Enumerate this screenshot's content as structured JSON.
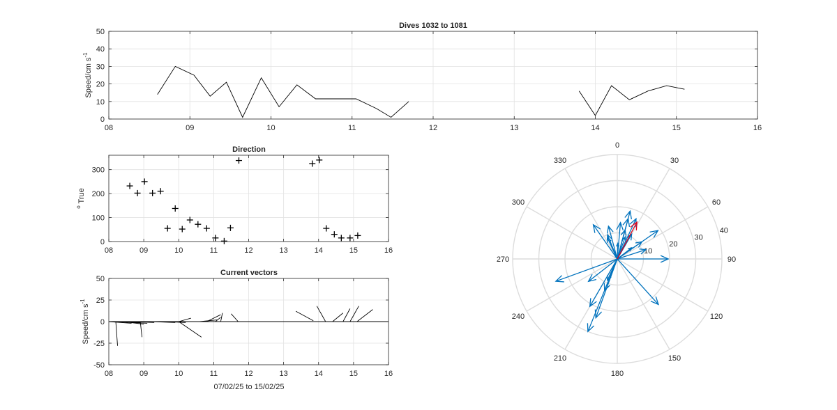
{
  "chart_data": [
    {
      "type": "line",
      "title": "Dives 1032 to 1081",
      "ylabel": "Speed/cm s",
      "ylabel_exp": "-1",
      "xlim": [
        8,
        16
      ],
      "ylim": [
        0,
        50
      ],
      "x_ticks": [
        "08",
        "09",
        "10",
        "11",
        "12",
        "13",
        "14",
        "15",
        "16"
      ],
      "y_ticks": [
        "0",
        "10",
        "20",
        "30",
        "40",
        "50"
      ],
      "grid": true,
      "segments": [
        {
          "x": [
            8.6,
            8.82,
            9.05,
            9.25,
            9.45,
            9.65,
            9.88,
            10.1,
            10.32,
            10.55,
            10.8,
            11.05,
            11.3,
            11.48,
            11.7
          ],
          "y": [
            14,
            30,
            25,
            13,
            21,
            1,
            23.5,
            7,
            19.5,
            11.5,
            11.5,
            11.5,
            6,
            1,
            10
          ]
        },
        {
          "x": [
            13.8,
            14.0,
            14.2,
            14.42,
            14.65,
            14.88,
            15.1
          ],
          "y": [
            16,
            2,
            19,
            11,
            16,
            19,
            17
          ]
        }
      ]
    },
    {
      "type": "scatter",
      "title": "Direction",
      "ylabel": "True",
      "ylabel_prefix": "o",
      "xlim": [
        8,
        16
      ],
      "ylim": [
        0,
        360
      ],
      "x_ticks": [
        "08",
        "09",
        "10",
        "11",
        "12",
        "13",
        "14",
        "15",
        "16"
      ],
      "y_ticks": [
        "0",
        "100",
        "200",
        "300"
      ],
      "grid": true,
      "x": [
        8.6,
        8.82,
        9.02,
        9.25,
        9.48,
        9.68,
        9.9,
        10.1,
        10.32,
        10.55,
        10.8,
        11.05,
        11.3,
        11.48,
        11.72,
        13.82,
        14.02,
        14.22,
        14.45,
        14.65,
        14.9,
        15.12
      ],
      "y": [
        232,
        202,
        250,
        202,
        210,
        55,
        138,
        52,
        90,
        72,
        55,
        15,
        2,
        57,
        338,
        325,
        340,
        55,
        30,
        15,
        15,
        25
      ]
    },
    {
      "type": "line",
      "subtype": "stick-vectors",
      "title": "Current vectors",
      "ylabel": "Speed/cm s",
      "ylabel_exp": "-1",
      "xlabel": "07/02/25 to 15/02/25",
      "xlim": [
        8,
        16
      ],
      "ylim": [
        -50,
        50
      ],
      "x_ticks": [
        "08",
        "09",
        "10",
        "11",
        "12",
        "13",
        "14",
        "15",
        "16"
      ],
      "y_ticks": [
        "-50",
        "-25",
        "0",
        "25",
        "50"
      ],
      "grid": true,
      "sticks": [
        {
          "x0": 8.0,
          "y0": 0,
          "x1": 8.65,
          "y1": -2
        },
        {
          "x0": 8.0,
          "y0": 0,
          "x1": 8.9,
          "y1": -1
        },
        {
          "x0": 8.2,
          "y0": 0,
          "x1": 8.25,
          "y1": -28
        },
        {
          "x0": 8.2,
          "y0": 0,
          "x1": 9.1,
          "y1": -2
        },
        {
          "x0": 8.4,
          "y0": 0,
          "x1": 9.0,
          "y1": -3
        },
        {
          "x0": 8.6,
          "y0": 0,
          "x1": 9.3,
          "y1": -1
        },
        {
          "x0": 8.9,
          "y0": 0,
          "x1": 8.95,
          "y1": -18
        },
        {
          "x0": 9.2,
          "y0": 0,
          "x1": 9.9,
          "y1": -1
        },
        {
          "x0": 9.5,
          "y0": 0,
          "x1": 10.2,
          "y1": -1
        },
        {
          "x0": 10.0,
          "y0": 0,
          "x1": 10.35,
          "y1": 4
        },
        {
          "x0": 10.0,
          "y0": 0,
          "x1": 10.65,
          "y1": -18
        },
        {
          "x0": 10.6,
          "y0": 0,
          "x1": 11.1,
          "y1": 2
        },
        {
          "x0": 10.8,
          "y0": 0,
          "x1": 11.2,
          "y1": 8
        },
        {
          "x0": 11.05,
          "y0": 0,
          "x1": 11.2,
          "y1": 5
        },
        {
          "x0": 11.2,
          "y0": 0,
          "x1": 11.25,
          "y1": 10
        },
        {
          "x0": 11.5,
          "y0": 0,
          "x1": 11.7,
          "y1": 0
        },
        {
          "x0": 11.5,
          "y0": 9,
          "x1": 11.7,
          "y1": 0
        },
        {
          "x0": 13.35,
          "y0": 12,
          "x1": 13.85,
          "y1": 1
        },
        {
          "x0": 13.95,
          "y0": 18,
          "x1": 14.2,
          "y1": 0
        },
        {
          "x0": 14.05,
          "y0": 0,
          "x1": 14.3,
          "y1": 0
        },
        {
          "x0": 14.4,
          "y0": 0,
          "x1": 14.7,
          "y1": 10
        },
        {
          "x0": 14.7,
          "y0": 0,
          "x1": 14.9,
          "y1": 15
        },
        {
          "x0": 14.9,
          "y0": 0,
          "x1": 15.15,
          "y1": 18
        },
        {
          "x0": 15.1,
          "y0": 0,
          "x1": 15.55,
          "y1": 14
        }
      ]
    },
    {
      "type": "scatter",
      "subtype": "polar-compass",
      "theta_ticks": [
        "0",
        "30",
        "60",
        "90",
        "120",
        "150",
        "180",
        "210",
        "240",
        "270",
        "300",
        "330"
      ],
      "r_ticks": [
        "10",
        "20",
        "30",
        "40"
      ],
      "rlim": [
        0,
        40
      ],
      "colors": {
        "vectors": "#0072bd",
        "mean": "#d9001b",
        "grid": "#dcdcdc"
      },
      "vectors_deg_speed": [
        [
          232,
          14
        ],
        [
          202,
          30
        ],
        [
          250,
          25
        ],
        [
          202,
          13
        ],
        [
          210,
          21
        ],
        [
          55,
          1
        ],
        [
          138,
          23.5
        ],
        [
          52,
          7
        ],
        [
          90,
          19.5
        ],
        [
          72,
          11.5
        ],
        [
          55,
          11.5
        ],
        [
          15,
          11.5
        ],
        [
          2,
          6
        ],
        [
          57,
          1
        ],
        [
          338,
          10
        ],
        [
          325,
          16
        ],
        [
          340,
          2
        ],
        [
          55,
          19
        ],
        [
          30,
          11
        ],
        [
          15,
          16
        ],
        [
          15,
          19
        ],
        [
          25,
          17
        ],
        [
          200,
          24
        ],
        [
          205,
          9
        ],
        [
          345,
          13
        ],
        [
          335,
          9
        ],
        [
          5,
          14
        ],
        [
          20,
          9
        ]
      ],
      "mean_vector_deg_speed": [
        28,
        16
      ]
    }
  ]
}
